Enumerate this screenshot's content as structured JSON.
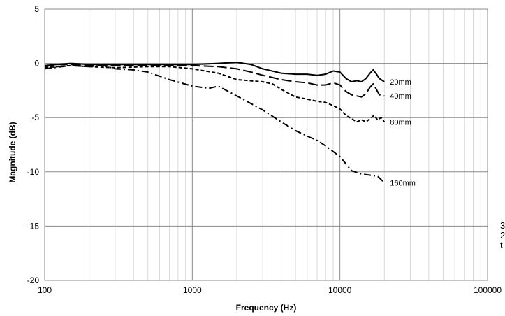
{
  "chart_data": {
    "type": "line",
    "title": "",
    "xlabel": "Frequency (Hz)",
    "ylabel": "Magnitude (dB)",
    "xscale": "log",
    "xlim": [
      100,
      100000
    ],
    "ylim": [
      -20,
      5
    ],
    "x_ticks": [
      "100",
      "1000",
      "10000",
      "100000"
    ],
    "y_ticks": [
      "5",
      "0",
      "-5",
      "-10",
      "-15",
      "-20"
    ],
    "grid": "major and minor vertical, major horizontal",
    "legend": "inline labels at right end of each line",
    "series": [
      {
        "name": "20mm",
        "style": "solid",
        "color": "#000000",
        "points": [
          [
            100,
            -0.2
          ],
          [
            120,
            -0.1
          ],
          [
            150,
            0.0
          ],
          [
            200,
            -0.1
          ],
          [
            300,
            -0.1
          ],
          [
            500,
            -0.1
          ],
          [
            700,
            -0.1
          ],
          [
            1000,
            -0.1
          ],
          [
            1500,
            0.0
          ],
          [
            2000,
            0.1
          ],
          [
            2500,
            -0.1
          ],
          [
            3000,
            -0.5
          ],
          [
            4000,
            -0.9
          ],
          [
            5000,
            -1.0
          ],
          [
            6000,
            -1.0
          ],
          [
            7000,
            -1.1
          ],
          [
            8000,
            -1.0
          ],
          [
            9000,
            -0.7
          ],
          [
            10000,
            -0.8
          ],
          [
            11000,
            -1.4
          ],
          [
            12000,
            -1.7
          ],
          [
            13000,
            -1.6
          ],
          [
            14000,
            -1.7
          ],
          [
            15000,
            -1.4
          ],
          [
            16000,
            -0.9
          ],
          [
            16800,
            -0.6
          ],
          [
            17500,
            -0.9
          ],
          [
            18500,
            -1.4
          ],
          [
            20000,
            -1.7
          ]
        ]
      },
      {
        "name": "40mm",
        "style": "long-dash",
        "color": "#000000",
        "points": [
          [
            100,
            -0.3
          ],
          [
            120,
            -0.1
          ],
          [
            150,
            -0.1
          ],
          [
            200,
            -0.2
          ],
          [
            300,
            -0.2
          ],
          [
            500,
            -0.2
          ],
          [
            700,
            -0.2
          ],
          [
            1000,
            -0.2
          ],
          [
            1500,
            -0.3
          ],
          [
            2000,
            -0.5
          ],
          [
            2500,
            -0.8
          ],
          [
            3000,
            -1.1
          ],
          [
            4000,
            -1.5
          ],
          [
            5000,
            -1.7
          ],
          [
            6000,
            -1.8
          ],
          [
            7000,
            -2.0
          ],
          [
            8000,
            -2.0
          ],
          [
            9000,
            -1.8
          ],
          [
            10000,
            -2.0
          ],
          [
            11000,
            -2.6
          ],
          [
            12000,
            -2.9
          ],
          [
            13000,
            -3.0
          ],
          [
            14000,
            -3.1
          ],
          [
            15000,
            -2.8
          ],
          [
            16000,
            -2.2
          ],
          [
            16800,
            -1.9
          ],
          [
            17500,
            -2.3
          ],
          [
            18500,
            -2.9
          ],
          [
            20000,
            -3.0
          ]
        ]
      },
      {
        "name": "80mm",
        "style": "short-dash",
        "color": "#000000",
        "points": [
          [
            100,
            -0.4
          ],
          [
            150,
            -0.2
          ],
          [
            200,
            -0.3
          ],
          [
            300,
            -0.4
          ],
          [
            500,
            -0.3
          ],
          [
            700,
            -0.3
          ],
          [
            1000,
            -0.5
          ],
          [
            1500,
            -0.9
          ],
          [
            2000,
            -1.5
          ],
          [
            3000,
            -1.7
          ],
          [
            3500,
            -1.9
          ],
          [
            4000,
            -2.4
          ],
          [
            5000,
            -3.1
          ],
          [
            6000,
            -3.3
          ],
          [
            7000,
            -3.5
          ],
          [
            8000,
            -3.6
          ],
          [
            9000,
            -3.9
          ],
          [
            10000,
            -4.2
          ],
          [
            11000,
            -4.8
          ],
          [
            12000,
            -5.1
          ],
          [
            13000,
            -5.4
          ],
          [
            14000,
            -5.2
          ],
          [
            15000,
            -5.4
          ],
          [
            16000,
            -5.1
          ],
          [
            17000,
            -4.8
          ],
          [
            18000,
            -5.2
          ],
          [
            19000,
            -5.0
          ],
          [
            20000,
            -5.4
          ]
        ]
      },
      {
        "name": "160mm",
        "style": "dash-dot",
        "color": "#000000",
        "points": [
          [
            100,
            -0.5
          ],
          [
            150,
            -0.2
          ],
          [
            200,
            -0.3
          ],
          [
            250,
            -0.2
          ],
          [
            300,
            -0.5
          ],
          [
            400,
            -0.6
          ],
          [
            500,
            -0.8
          ],
          [
            700,
            -1.5
          ],
          [
            1000,
            -2.1
          ],
          [
            1300,
            -2.3
          ],
          [
            1500,
            -2.1
          ],
          [
            2000,
            -3.0
          ],
          [
            3000,
            -4.3
          ],
          [
            4000,
            -5.4
          ],
          [
            5000,
            -6.2
          ],
          [
            6000,
            -6.7
          ],
          [
            7000,
            -7.1
          ],
          [
            8000,
            -7.6
          ],
          [
            10000,
            -8.6
          ],
          [
            12000,
            -9.9
          ],
          [
            14000,
            -10.2
          ],
          [
            16000,
            -10.3
          ],
          [
            18000,
            -10.4
          ],
          [
            20000,
            -11.0
          ]
        ]
      }
    ]
  },
  "edge_fragments": [
    "3",
    "2",
    "t"
  ]
}
